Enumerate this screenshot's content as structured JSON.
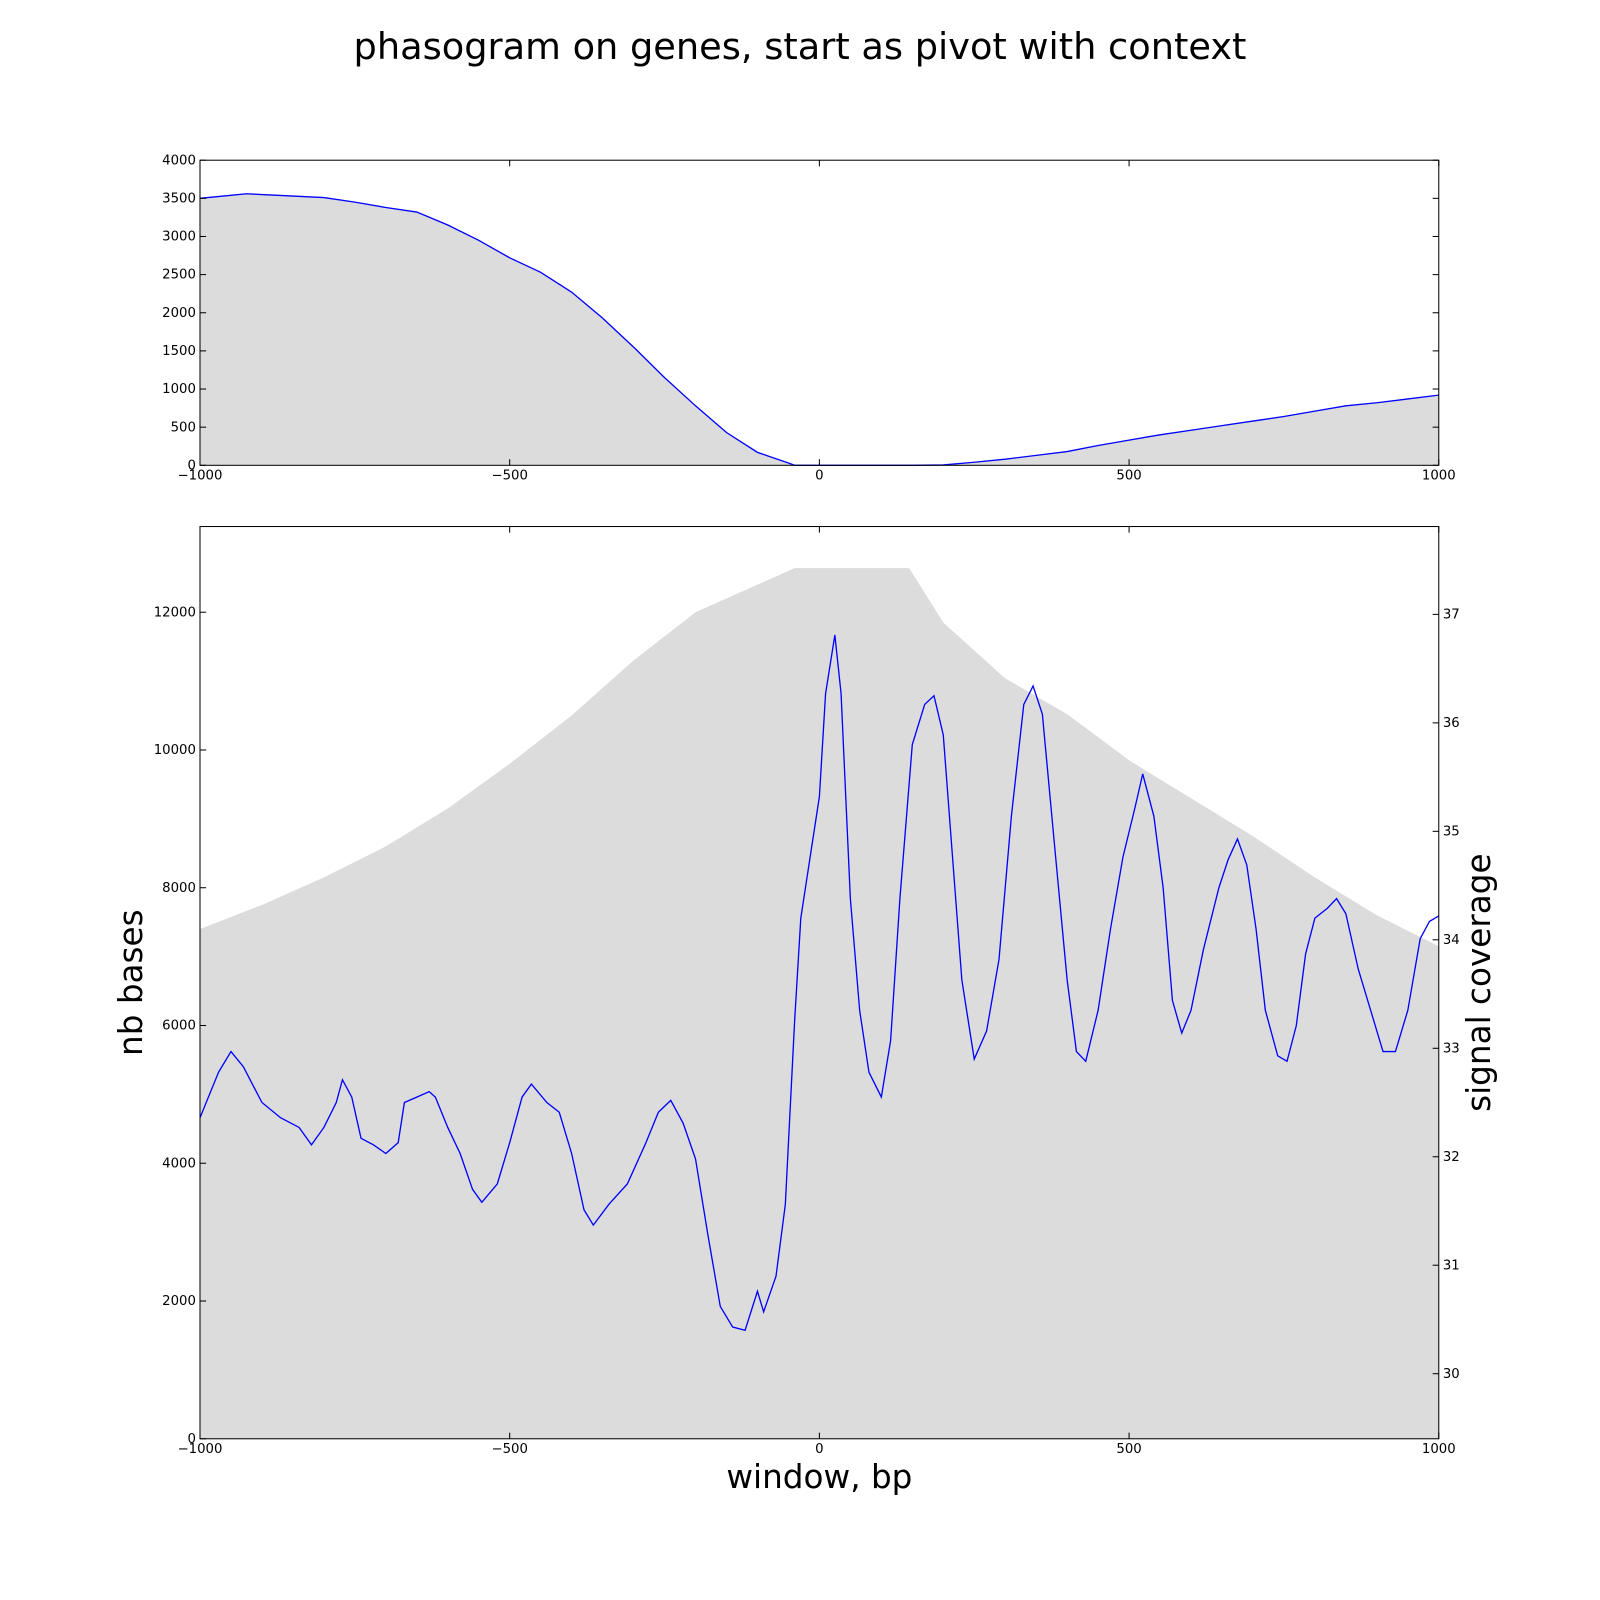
{
  "title": "phasogram on genes, start as pivot with context",
  "chart_data": [
    {
      "type": "area",
      "xlim": [
        -1000,
        1000
      ],
      "xticks": [
        {
          "value": -1000,
          "label": "−1000"
        },
        {
          "value": -500,
          "label": "−500"
        },
        0,
        500,
        1000
      ],
      "ylim": [
        0,
        4000
      ],
      "yticks": [
        0,
        500,
        1000,
        1500,
        2000,
        2500,
        3000,
        3500,
        4000
      ],
      "series": [
        {
          "color": "#0000ff",
          "fill": "#dcdcdc",
          "x": [
            -1000,
            -950,
            -925,
            -900,
            -850,
            -800,
            -750,
            -700,
            -650,
            -600,
            -550,
            -500,
            -450,
            -400,
            -350,
            -300,
            -250,
            -200,
            -150,
            -100,
            -50,
            -40,
            0,
            50,
            100,
            150,
            200,
            250,
            300,
            350,
            400,
            450,
            500,
            550,
            600,
            650,
            700,
            750,
            800,
            850,
            900,
            950,
            1000
          ],
          "values": [
            3500,
            3540,
            3560,
            3550,
            3530,
            3510,
            3450,
            3380,
            3320,
            3150,
            2950,
            2720,
            2530,
            2270,
            1930,
            1550,
            1150,
            780,
            430,
            170,
            30,
            0,
            0,
            0,
            0,
            0,
            5,
            40,
            80,
            130,
            180,
            260,
            330,
            400,
            460,
            520,
            580,
            640,
            710,
            780,
            820,
            870,
            920
          ]
        }
      ]
    },
    {
      "type": "area",
      "xlabel": "window, bp",
      "ylabel": "nb bases",
      "y2label": "signal coverage",
      "xlim": [
        -1000,
        1000
      ],
      "xticks": [
        {
          "value": -1000,
          "label": "−1000"
        },
        {
          "value": -500,
          "label": "−500"
        },
        0,
        500,
        1000
      ],
      "ylim": [
        0,
        13244
      ],
      "yticks": [
        0,
        2000,
        4000,
        6000,
        8000,
        10000,
        12000
      ],
      "y2lim": [
        29.4,
        37.81
      ],
      "y2ticks": [
        30,
        31,
        32,
        33,
        34,
        35,
        36,
        37
      ],
      "series": [
        {
          "fill": "#dcdcdc",
          "x": [
            -1000,
            -900,
            -800,
            -700,
            -600,
            -500,
            -400,
            -300,
            -200,
            -100,
            -40,
            0,
            145,
            200,
            300,
            400,
            500,
            600,
            700,
            800,
            900,
            1000
          ],
          "values": [
            7400,
            7750,
            8150,
            8600,
            9150,
            9800,
            10500,
            11300,
            12000,
            12400,
            12640,
            12640,
            12640,
            11850,
            11040,
            10520,
            9850,
            9300,
            8750,
            8150,
            7600,
            7150
          ]
        },
        {
          "color": "#0000ff",
          "axis": "y2",
          "x": [
            -1000,
            -970,
            -950,
            -930,
            -900,
            -870,
            -840,
            -820,
            -800,
            -780,
            -770,
            -755,
            -740,
            -720,
            -700,
            -680,
            -670,
            -650,
            -630,
            -620,
            -600,
            -580,
            -560,
            -545,
            -520,
            -500,
            -480,
            -465,
            -440,
            -420,
            -400,
            -380,
            -365,
            -340,
            -310,
            -280,
            -260,
            -240,
            -220,
            -200,
            -180,
            -160,
            -140,
            -120,
            -100,
            -90,
            -70,
            -55,
            -40,
            -30,
            -15,
            0,
            10,
            25,
            35,
            50,
            65,
            80,
            100,
            115,
            130,
            150,
            170,
            185,
            200,
            215,
            230,
            250,
            270,
            290,
            310,
            330,
            345,
            360,
            380,
            400,
            415,
            430,
            450,
            470,
            490,
            510,
            522,
            540,
            555,
            570,
            585,
            600,
            620,
            645,
            660,
            675,
            690,
            705,
            720,
            740,
            755,
            770,
            785,
            800,
            820,
            835,
            850,
            870,
            890,
            910,
            930,
            950,
            970,
            985,
            1000
          ],
          "values": [
            32.36,
            32.78,
            32.97,
            32.83,
            32.5,
            32.36,
            32.27,
            32.11,
            32.27,
            32.5,
            32.71,
            32.55,
            32.17,
            32.11,
            32.03,
            32.13,
            32.5,
            32.55,
            32.6,
            32.55,
            32.27,
            32.03,
            31.7,
            31.58,
            31.75,
            32.13,
            32.55,
            32.67,
            32.5,
            32.41,
            32.03,
            31.51,
            31.37,
            31.56,
            31.75,
            32.13,
            32.41,
            32.52,
            32.31,
            31.98,
            31.28,
            30.62,
            30.43,
            30.4,
            30.76,
            30.57,
            30.9,
            31.56,
            33.25,
            34.2,
            34.76,
            35.32,
            36.27,
            36.81,
            36.27,
            34.38,
            33.35,
            32.78,
            32.55,
            33.07,
            34.38,
            35.8,
            36.17,
            36.25,
            35.89,
            34.76,
            33.63,
            32.9,
            33.16,
            33.82,
            35.14,
            36.17,
            36.34,
            36.08,
            34.85,
            33.63,
            32.97,
            32.88,
            33.35,
            34.1,
            34.76,
            35.23,
            35.53,
            35.14,
            34.48,
            33.44,
            33.14,
            33.35,
            33.91,
            34.48,
            34.74,
            34.93,
            34.69,
            34.1,
            33.35,
            32.93,
            32.88,
            33.21,
            33.87,
            34.2,
            34.29,
            34.38,
            34.24,
            33.73,
            33.35,
            32.97,
            32.97,
            33.35,
            34.01,
            34.17,
            34.22
          ]
        }
      ]
    }
  ]
}
